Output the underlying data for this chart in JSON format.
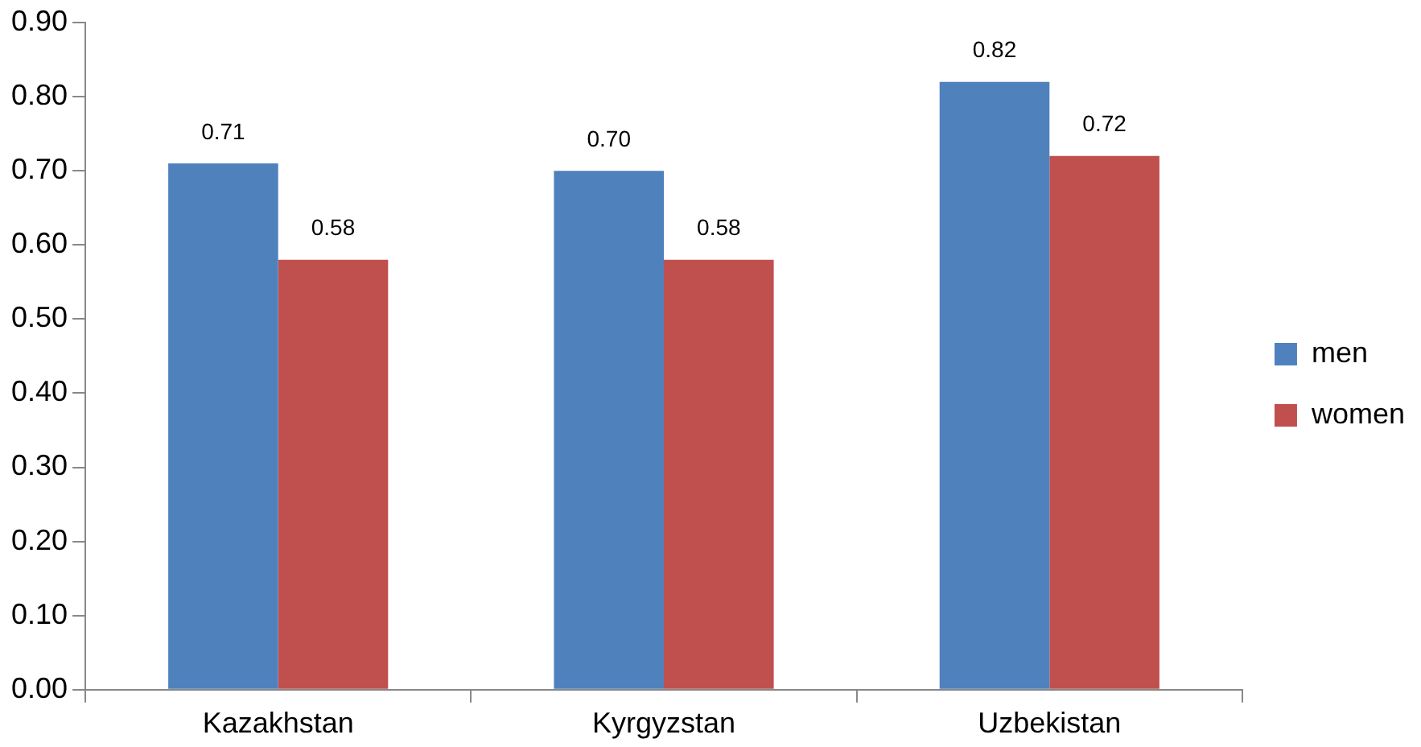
{
  "chart_data": {
    "type": "bar",
    "categories": [
      "Kazakhstan",
      "Kyrgyzstan",
      "Uzbekistan"
    ],
    "series": [
      {
        "name": "men",
        "color": "#4f81bd",
        "values": [
          0.71,
          0.7,
          0.82
        ],
        "value_labels": [
          "0.71",
          "0.70",
          "0.82"
        ]
      },
      {
        "name": "women",
        "color": "#c0504d",
        "values": [
          0.58,
          0.58,
          0.72
        ],
        "value_labels": [
          "0.58",
          "0.58",
          "0.72"
        ]
      }
    ],
    "ylim": [
      0,
      0.9
    ],
    "yticks": [
      {
        "value": 0,
        "label": "0.00"
      },
      {
        "value": 0.1,
        "label": "0.10"
      },
      {
        "value": 0.2,
        "label": "0.20"
      },
      {
        "value": 0.3,
        "label": "0.30"
      },
      {
        "value": 0.4,
        "label": "0.40"
      },
      {
        "value": 0.5,
        "label": "0.50"
      },
      {
        "value": 0.6,
        "label": "0.60"
      },
      {
        "value": 0.7,
        "label": "0.70"
      },
      {
        "value": 0.8,
        "label": "0.80"
      },
      {
        "value": 0.9,
        "label": "0.90"
      }
    ],
    "grid": false,
    "legend": "right"
  }
}
